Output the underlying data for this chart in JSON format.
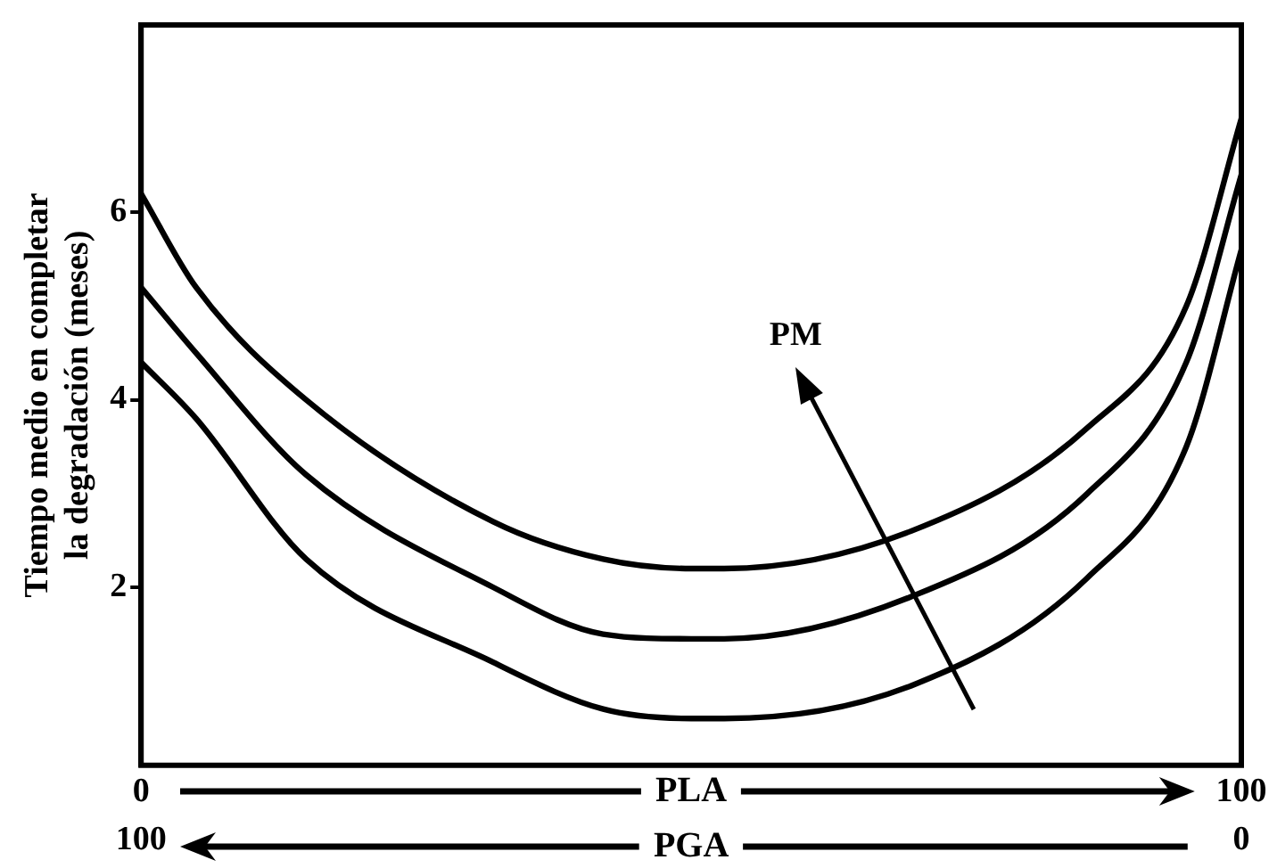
{
  "chart_data": {
    "type": "line",
    "ylabel": "Tiempo medio en completar\nla degradación (meses)",
    "xlabel": "PLA",
    "x2label": "PGA",
    "x": [
      0,
      5,
      15,
      32,
      42,
      50,
      53,
      70,
      86,
      95,
      100
    ],
    "series": [
      {
        "color": "#000000",
        "values": [
          6.2,
          5.2,
          4.0,
          2.7,
          2.3,
          2.2,
          2.2,
          2.6,
          3.7,
          5.0,
          7.0
        ]
      },
      {
        "color": "#000000",
        "values": [
          5.2,
          4.5,
          3.2,
          2.0,
          1.5,
          1.45,
          1.45,
          1.9,
          3.0,
          4.4,
          6.4
        ]
      },
      {
        "color": "#000000",
        "values": [
          4.4,
          3.8,
          2.3,
          1.2,
          0.7,
          0.6,
          0.6,
          0.95,
          2.1,
          3.5,
          5.6
        ]
      }
    ],
    "xlim": [
      0,
      100
    ],
    "xticks": [
      0,
      100
    ],
    "x2lim": [
      100,
      0
    ],
    "x2ticks": [
      100,
      0
    ],
    "ylim": [
      0.1,
      8
    ],
    "yticks": [
      2,
      4,
      6
    ],
    "grid": false,
    "legend": false,
    "marker": "none",
    "line_style": "solid",
    "annotations": [
      "PM"
    ]
  }
}
